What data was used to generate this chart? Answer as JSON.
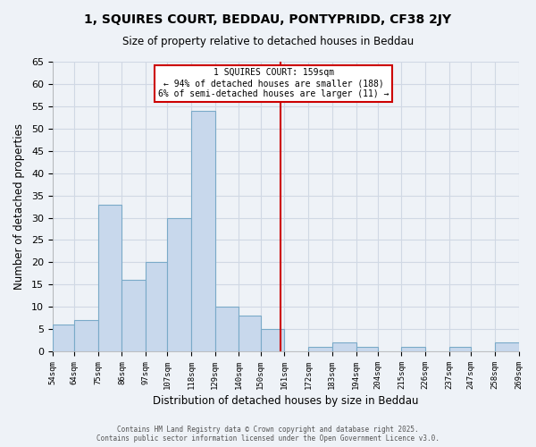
{
  "title": "1, SQUIRES COURT, BEDDAU, PONTYPRIDD, CF38 2JY",
  "subtitle": "Size of property relative to detached houses in Beddau",
  "xlabel": "Distribution of detached houses by size in Beddau",
  "ylabel": "Number of detached properties",
  "bin_labels": [
    "54sqm",
    "64sqm",
    "75sqm",
    "86sqm",
    "97sqm",
    "107sqm",
    "118sqm",
    "129sqm",
    "140sqm",
    "150sqm",
    "161sqm",
    "172sqm",
    "183sqm",
    "194sqm",
    "204sqm",
    "215sqm",
    "226sqm",
    "237sqm",
    "247sqm",
    "258sqm",
    "269sqm"
  ],
  "bin_edges": [
    54,
    64,
    75,
    86,
    97,
    107,
    118,
    129,
    140,
    150,
    161,
    172,
    183,
    194,
    204,
    215,
    226,
    237,
    247,
    258,
    269
  ],
  "counts": [
    6,
    7,
    33,
    16,
    20,
    30,
    54,
    10,
    8,
    5,
    0,
    1,
    2,
    1,
    0,
    1,
    0,
    1,
    0,
    2
  ],
  "bar_color": "#c8d8ec",
  "bar_edge_color": "#7aaac8",
  "property_size": 159,
  "vline_color": "#cc0000",
  "annotation_title": "1 SQUIRES COURT: 159sqm",
  "annotation_line1": "← 94% of detached houses are smaller (188)",
  "annotation_line2": "6% of semi-detached houses are larger (11) →",
  "ylim": [
    0,
    65
  ],
  "yticks": [
    0,
    5,
    10,
    15,
    20,
    25,
    30,
    35,
    40,
    45,
    50,
    55,
    60,
    65
  ],
  "background_color": "#eef2f7",
  "grid_color": "#d0d8e4",
  "footer1": "Contains HM Land Registry data © Crown copyright and database right 2025.",
  "footer2": "Contains public sector information licensed under the Open Government Licence v3.0."
}
